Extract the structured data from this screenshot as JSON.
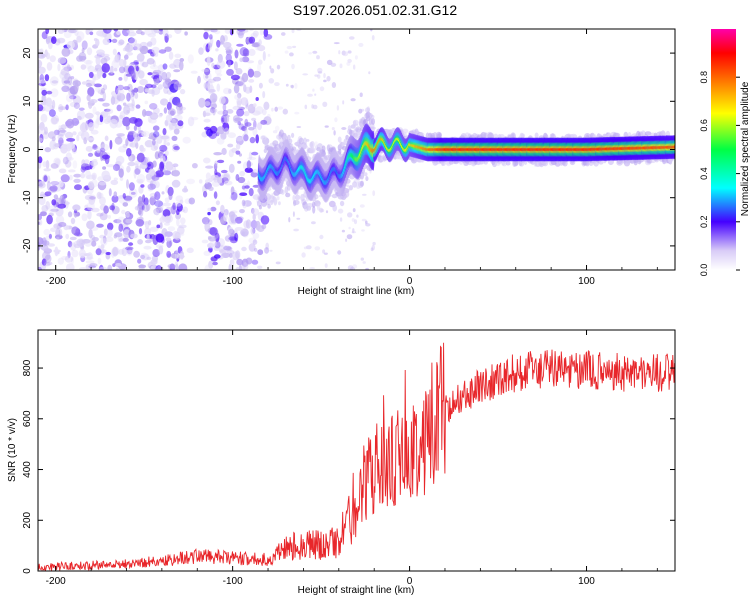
{
  "title": "S197.2026.051.02.31.G12",
  "chart_data": [
    {
      "type": "heatmap",
      "xlabel": "Height of straight line (km)",
      "ylabel": "Frequency (Hz)",
      "xlim": [
        -210,
        150
      ],
      "ylim": [
        -25,
        25
      ],
      "xticks": [
        -200,
        -100,
        0,
        100
      ],
      "yticks": [
        -20,
        -10,
        0,
        10,
        20
      ],
      "grid": false,
      "colorbar": {
        "label": "Normalized spectral amplitude",
        "range": [
          0,
          1
        ],
        "ticks": [
          0.0,
          0.2,
          0.4,
          0.6,
          0.8
        ],
        "tick_labels": [
          "0.0",
          "0.2",
          "0.4",
          "0.6",
          "0.8"
        ],
        "colors": [
          "#ffffff",
          "#b8a4f0",
          "#4400ff",
          "#00ffff",
          "#00ff44",
          "#ffff00",
          "#ff6600",
          "#ff0000",
          "#ff00aa"
        ]
      },
      "ridge": {
        "description_note": "dominant signal frequency vs height",
        "x": [
          -80,
          -70,
          -60,
          -50,
          -40,
          -30,
          -20,
          -10,
          0,
          10,
          20,
          50,
          100,
          150
        ],
        "freq": [
          -5,
          -3,
          -5,
          -6,
          -5,
          -1,
          1,
          1,
          1,
          0,
          0,
          0,
          0,
          0.5
        ],
        "amplitude": [
          0.35,
          0.3,
          0.4,
          0.35,
          0.3,
          0.55,
          0.75,
          0.6,
          0.65,
          0.75,
          0.85,
          0.85,
          0.85,
          0.8
        ]
      }
    },
    {
      "type": "line",
      "xlabel": "Height of straight line (km)",
      "ylabel": "SNR (10 * v/v)",
      "xlim": [
        -210,
        150
      ],
      "ylim": [
        0,
        950
      ],
      "xticks": [
        -200,
        -100,
        0,
        100
      ],
      "yticks": [
        0,
        200,
        400,
        600,
        800
      ],
      "grid": false,
      "series": [
        {
          "name": "SNR",
          "color": "#e8262a",
          "x": [
            -210,
            -200,
            -180,
            -160,
            -140,
            -120,
            -100,
            -80,
            -70,
            -60,
            -50,
            -40,
            -35,
            -30,
            -25,
            -20,
            -15,
            -10,
            -5,
            0,
            5,
            10,
            15,
            20,
            25,
            30,
            40,
            50,
            60,
            80,
            100,
            120,
            150
          ],
          "y": [
            15,
            18,
            22,
            28,
            40,
            60,
            50,
            45,
            90,
            110,
            100,
            120,
            180,
            300,
            360,
            400,
            420,
            430,
            440,
            450,
            500,
            560,
            600,
            630,
            660,
            690,
            730,
            760,
            780,
            800,
            790,
            785,
            780
          ]
        }
      ]
    }
  ]
}
